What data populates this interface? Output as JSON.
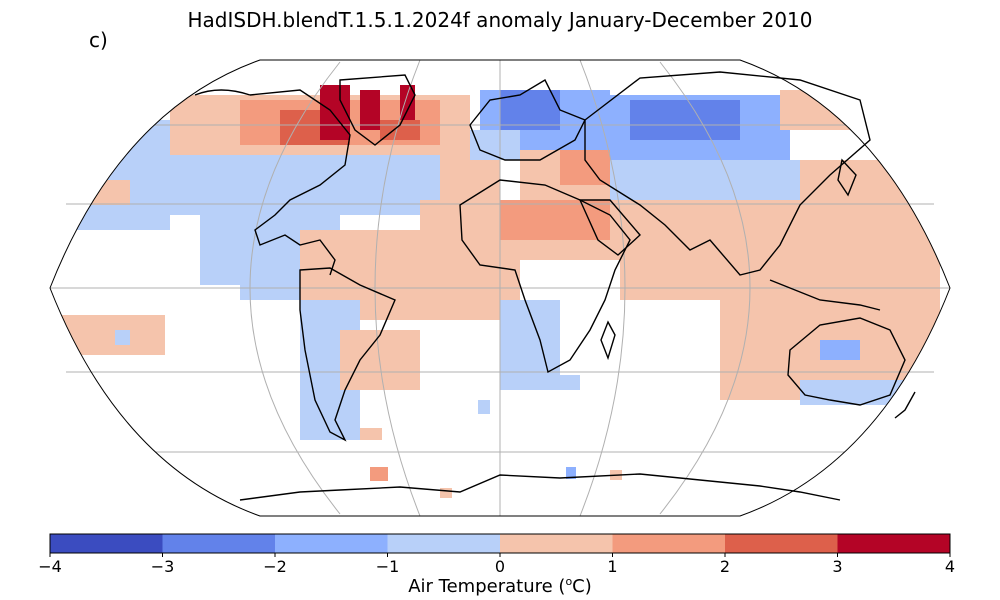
{
  "title": "HadISDH.blendT.1.5.1.2024f anomaly January-December 2010",
  "panel_label": "c)",
  "colorbar": {
    "label_prefix": "Air Temperature (",
    "label_sup": "o",
    "label_suffix": "C)",
    "ticks": [
      "−4",
      "−3",
      "−2",
      "−1",
      "0",
      "1",
      "2",
      "3",
      "4"
    ],
    "colors": [
      "#3b4cc0",
      "#6282ea",
      "#8db0fe",
      "#b8d0f9",
      "#f5c4ac",
      "#f39b7e",
      "#dd604b",
      "#b40426"
    ]
  },
  "map": {
    "projection": "Robinson",
    "variable": "Air temperature anomaly",
    "period": "January-December 2010",
    "dataset": "HadISDH.blendT.1.5.1.2024f",
    "coastline_color": "#000000",
    "grid_color": "#b0b0b0",
    "regions": [
      {
        "name": "Arctic Canada / Greenland",
        "anomaly_class": "2 to 4"
      },
      {
        "name": "Northern Europe and Scandinavia",
        "anomaly_class": "-3 to -1"
      },
      {
        "name": "Central Siberia",
        "anomaly_class": "-3 to -1"
      },
      {
        "name": "North America mid-latitudes",
        "anomaly_class": "-1 to 0"
      },
      {
        "name": "Eastern Europe / Middle East",
        "anomaly_class": "1 to 2"
      },
      {
        "name": "Tropics and Africa",
        "anomaly_class": "0 to 1"
      },
      {
        "name": "Australia",
        "anomaly_class": "0 to 1"
      },
      {
        "name": "Western South America",
        "anomaly_class": "-1 to 0"
      }
    ]
  }
}
